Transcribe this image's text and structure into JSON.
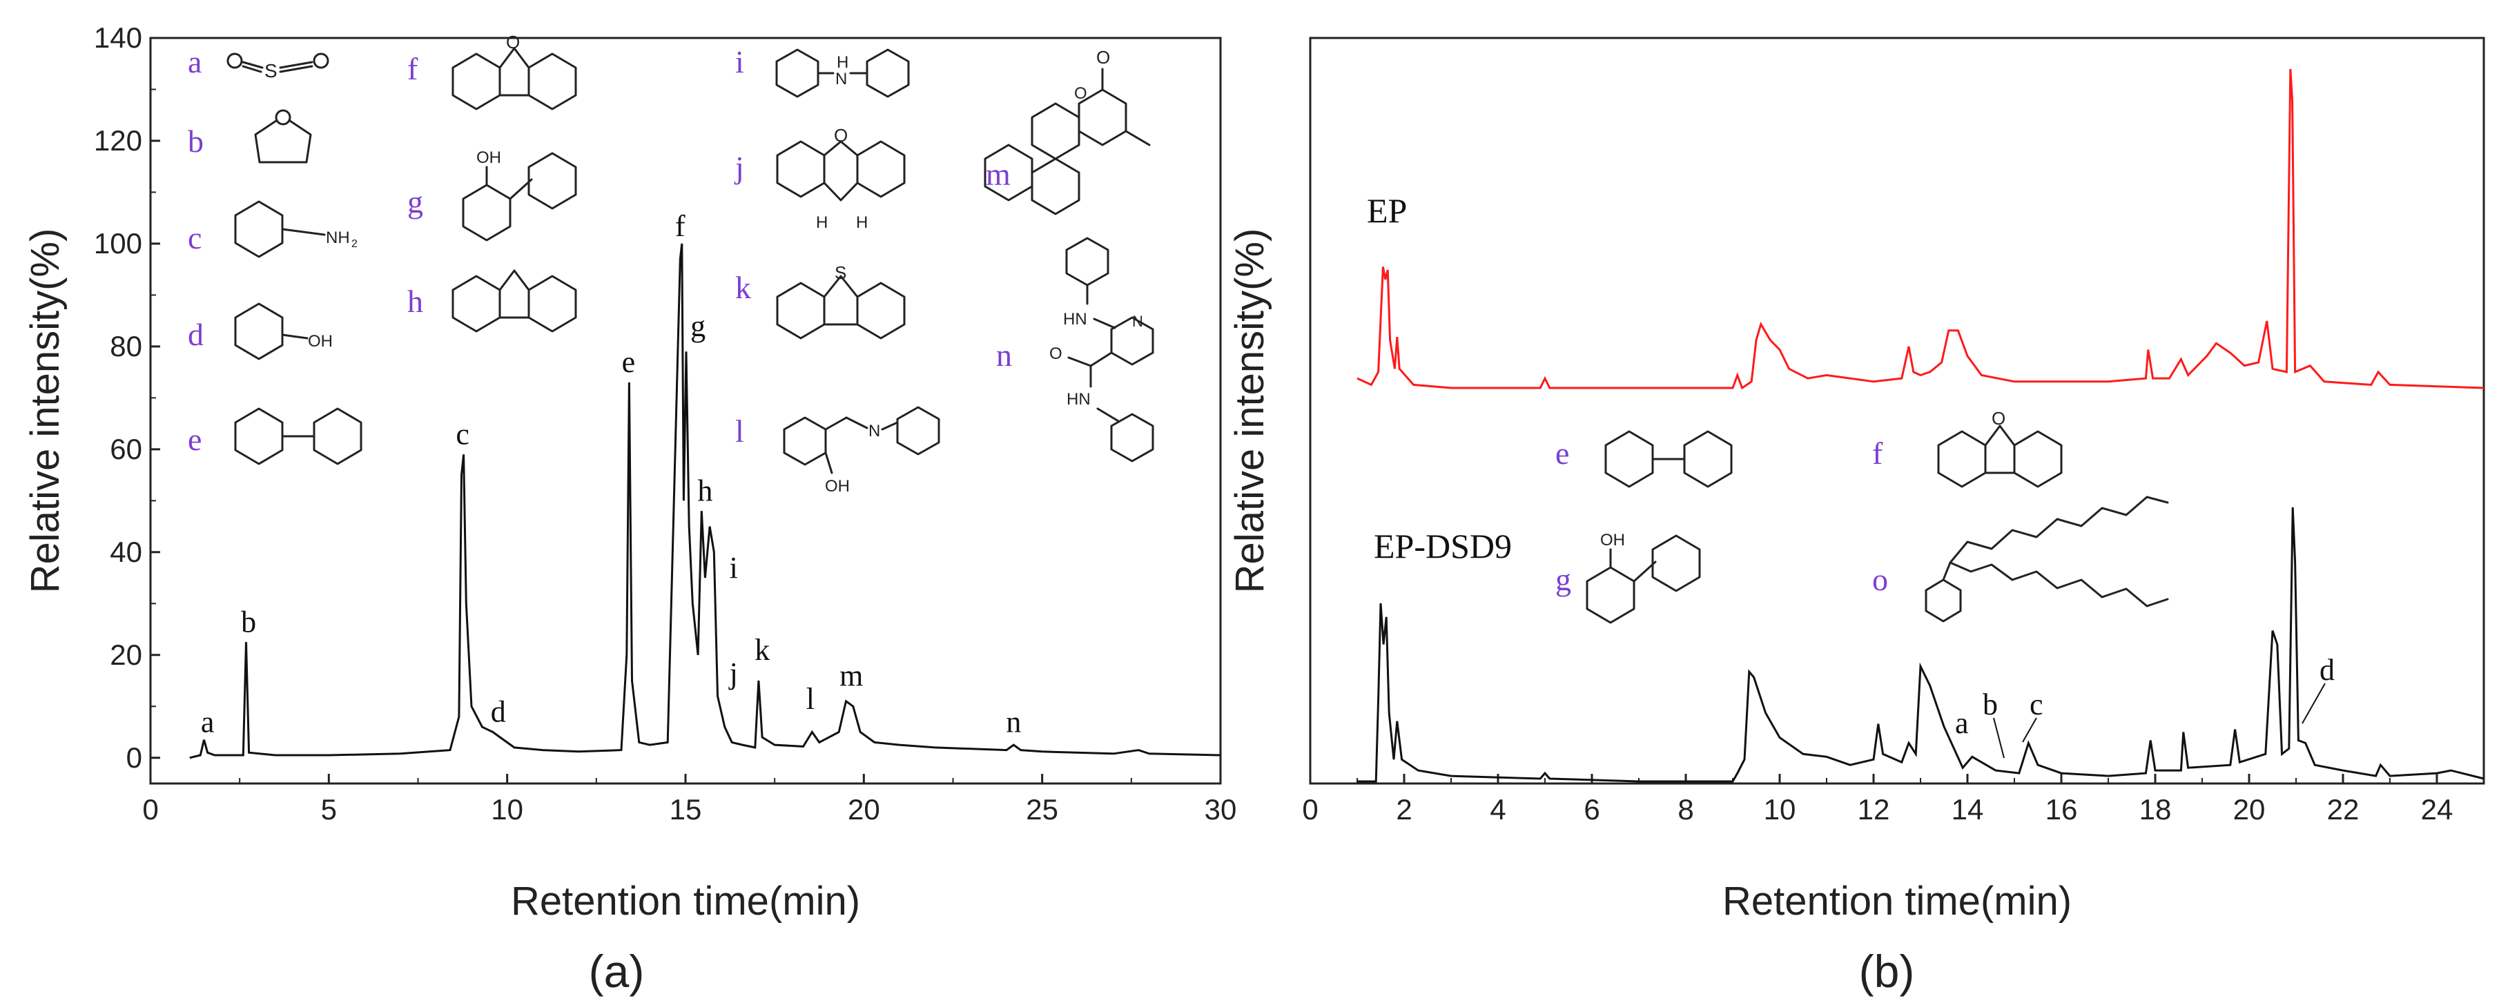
{
  "chart_data": [
    {
      "type": "line",
      "panel_label": "(a)",
      "xlabel": "Retention time(min)",
      "ylabel": "Relative intensity(%)",
      "xlim": [
        0,
        30
      ],
      "ylim": [
        -5,
        140
      ],
      "xticks": [
        "0",
        "5",
        "10",
        "15",
        "20",
        "25",
        "30"
      ],
      "yticks": [
        "0",
        "20",
        "40",
        "60",
        "80",
        "100",
        "120",
        "140"
      ],
      "series": [
        {
          "color": "#111111",
          "points": [
            [
              1.1,
              0
            ],
            [
              1.4,
              0.5
            ],
            [
              1.5,
              3.5
            ],
            [
              1.6,
              1
            ],
            [
              1.8,
              0.5
            ],
            [
              2.6,
              0.5
            ],
            [
              2.68,
              22.5
            ],
            [
              2.76,
              1
            ],
            [
              3.5,
              0.5
            ],
            [
              5,
              0.5
            ],
            [
              7,
              0.8
            ],
            [
              8.4,
              1.5
            ],
            [
              8.65,
              8
            ],
            [
              8.72,
              55
            ],
            [
              8.78,
              59
            ],
            [
              8.85,
              30
            ],
            [
              9.0,
              10
            ],
            [
              9.3,
              6
            ],
            [
              9.6,
              5
            ],
            [
              9.8,
              4
            ],
            [
              10.2,
              2
            ],
            [
              11,
              1.5
            ],
            [
              12,
              1.2
            ],
            [
              13.2,
              1.5
            ],
            [
              13.35,
              20
            ],
            [
              13.42,
              73
            ],
            [
              13.5,
              15
            ],
            [
              13.7,
              3
            ],
            [
              14.0,
              2.5
            ],
            [
              14.5,
              3
            ],
            [
              14.85,
              97
            ],
            [
              14.9,
              100
            ],
            [
              14.95,
              50
            ],
            [
              15.02,
              79
            ],
            [
              15.1,
              45
            ],
            [
              15.2,
              30
            ],
            [
              15.35,
              20
            ],
            [
              15.45,
              48
            ],
            [
              15.55,
              35
            ],
            [
              15.68,
              45
            ],
            [
              15.8,
              40
            ],
            [
              15.9,
              12
            ],
            [
              16.1,
              6
            ],
            [
              16.3,
              3
            ],
            [
              16.6,
              2.5
            ],
            [
              16.95,
              2
            ],
            [
              17.05,
              15
            ],
            [
              17.15,
              4
            ],
            [
              17.5,
              2.5
            ],
            [
              18.3,
              2.2
            ],
            [
              18.55,
              5
            ],
            [
              18.75,
              3
            ],
            [
              19.3,
              5
            ],
            [
              19.5,
              11
            ],
            [
              19.7,
              10
            ],
            [
              19.9,
              5
            ],
            [
              20.3,
              3
            ],
            [
              21,
              2.5
            ],
            [
              22,
              2
            ],
            [
              24,
              1.5
            ],
            [
              24.2,
              2.5
            ],
            [
              24.4,
              1.5
            ],
            [
              25,
              1.2
            ],
            [
              27,
              0.8
            ],
            [
              27.7,
              1.5
            ],
            [
              28,
              0.8
            ],
            [
              30,
              0.5
            ]
          ]
        }
      ],
      "peak_labels": [
        {
          "text": "a",
          "x": 1.6,
          "y": 5
        },
        {
          "text": "b",
          "x": 2.75,
          "y": 24.5
        },
        {
          "text": "c",
          "x": 8.75,
          "y": 61
        },
        {
          "text": "d",
          "x": 9.75,
          "y": 7
        },
        {
          "text": "e",
          "x": 13.4,
          "y": 75
        },
        {
          "text": "f",
          "x": 14.85,
          "y": 101.5
        },
        {
          "text": "g",
          "x": 15.35,
          "y": 82
        },
        {
          "text": "h",
          "x": 15.55,
          "y": 50
        },
        {
          "text": "i",
          "x": 16.35,
          "y": 35
        },
        {
          "text": "j",
          "x": 16.35,
          "y": 14.5
        },
        {
          "text": "k",
          "x": 17.15,
          "y": 19
        },
        {
          "text": "l",
          "x": 18.5,
          "y": 9.5
        },
        {
          "text": "m",
          "x": 19.65,
          "y": 14
        },
        {
          "text": "n",
          "x": 24.2,
          "y": 5
        }
      ],
      "compound_legend": [
        "a",
        "b",
        "c",
        "d",
        "e",
        "f",
        "g",
        "h",
        "i",
        "j",
        "k",
        "l",
        "m",
        "n"
      ]
    },
    {
      "type": "line",
      "panel_label": "(b)",
      "xlabel": "Retention time(min)",
      "ylabel": "Relative intensity(%)",
      "xlim": [
        0,
        25
      ],
      "xticks": [
        "0",
        "2",
        "4",
        "6",
        "8",
        "10",
        "12",
        "14",
        "16",
        "18",
        "20",
        "22",
        "24"
      ],
      "series": [
        {
          "name": "EP",
          "color": "#ff1a1a",
          "points": [
            [
              1.0,
              0.03
            ],
            [
              1.3,
              0.01
            ],
            [
              1.45,
              0.05
            ],
            [
              1.55,
              0.38
            ],
            [
              1.6,
              0.34
            ],
            [
              1.65,
              0.37
            ],
            [
              1.7,
              0.15
            ],
            [
              1.8,
              0.06
            ],
            [
              1.85,
              0.16
            ],
            [
              1.9,
              0.06
            ],
            [
              2.2,
              0.01
            ],
            [
              3,
              0
            ],
            [
              4.9,
              0
            ],
            [
              5.0,
              0.03
            ],
            [
              5.1,
              0
            ],
            [
              7,
              0
            ],
            [
              9.0,
              0
            ],
            [
              9.1,
              0.04
            ],
            [
              9.2,
              0
            ],
            [
              9.4,
              0.02
            ],
            [
              9.5,
              0.15
            ],
            [
              9.6,
              0.2
            ],
            [
              9.8,
              0.15
            ],
            [
              10.0,
              0.12
            ],
            [
              10.2,
              0.06
            ],
            [
              10.6,
              0.03
            ],
            [
              11,
              0.04
            ],
            [
              11.5,
              0.03
            ],
            [
              12,
              0.02
            ],
            [
              12.6,
              0.03
            ],
            [
              12.75,
              0.13
            ],
            [
              12.85,
              0.05
            ],
            [
              13.0,
              0.04
            ],
            [
              13.2,
              0.05
            ],
            [
              13.45,
              0.08
            ],
            [
              13.6,
              0.18
            ],
            [
              13.8,
              0.18
            ],
            [
              14,
              0.1
            ],
            [
              14.3,
              0.04
            ],
            [
              15,
              0.02
            ],
            [
              16,
              0.02
            ],
            [
              17,
              0.02
            ],
            [
              17.8,
              0.03
            ],
            [
              17.85,
              0.12
            ],
            [
              17.95,
              0.03
            ],
            [
              18.3,
              0.03
            ],
            [
              18.55,
              0.09
            ],
            [
              18.7,
              0.04
            ],
            [
              19.1,
              0.1
            ],
            [
              19.3,
              0.14
            ],
            [
              19.6,
              0.11
            ],
            [
              19.9,
              0.07
            ],
            [
              20.2,
              0.08
            ],
            [
              20.38,
              0.21
            ],
            [
              20.5,
              0.06
            ],
            [
              20.8,
              0.05
            ],
            [
              20.88,
              1.0
            ],
            [
              20.92,
              0.9
            ],
            [
              20.98,
              0.05
            ],
            [
              21.3,
              0.07
            ],
            [
              21.6,
              0.02
            ],
            [
              22.6,
              0.01
            ],
            [
              22.75,
              0.05
            ],
            [
              23,
              0.01
            ],
            [
              25,
              0
            ]
          ]
        },
        {
          "name": "EP-DSD9",
          "color": "#111111",
          "points": [
            [
              1.0,
              0
            ],
            [
              1.4,
              0
            ],
            [
              1.45,
              0.3
            ],
            [
              1.5,
              0.65
            ],
            [
              1.56,
              0.5
            ],
            [
              1.62,
              0.6
            ],
            [
              1.68,
              0.25
            ],
            [
              1.78,
              0.08
            ],
            [
              1.85,
              0.22
            ],
            [
              1.95,
              0.08
            ],
            [
              2.3,
              0.04
            ],
            [
              3,
              0.02
            ],
            [
              4.9,
              0.01
            ],
            [
              5.0,
              0.03
            ],
            [
              5.1,
              0.01
            ],
            [
              7,
              0
            ],
            [
              9.0,
              0
            ],
            [
              9.1,
              0.03
            ],
            [
              9.25,
              0.08
            ],
            [
              9.35,
              0.4
            ],
            [
              9.45,
              0.38
            ],
            [
              9.7,
              0.25
            ],
            [
              10,
              0.16
            ],
            [
              10.5,
              0.1
            ],
            [
              11,
              0.09
            ],
            [
              11.5,
              0.06
            ],
            [
              12.0,
              0.08
            ],
            [
              12.1,
              0.21
            ],
            [
              12.2,
              0.1
            ],
            [
              12.6,
              0.07
            ],
            [
              12.75,
              0.14
            ],
            [
              12.9,
              0.1
            ],
            [
              13.0,
              0.42
            ],
            [
              13.2,
              0.35
            ],
            [
              13.5,
              0.2
            ],
            [
              13.9,
              0.05
            ],
            [
              14.1,
              0.09
            ],
            [
              14.6,
              0.04
            ],
            [
              15.1,
              0.03
            ],
            [
              15.3,
              0.14
            ],
            [
              15.5,
              0.06
            ],
            [
              16,
              0.03
            ],
            [
              17,
              0.02
            ],
            [
              17.8,
              0.03
            ],
            [
              17.9,
              0.15
            ],
            [
              18.0,
              0.04
            ],
            [
              18.55,
              0.04
            ],
            [
              18.6,
              0.18
            ],
            [
              18.7,
              0.05
            ],
            [
              19.6,
              0.06
            ],
            [
              19.7,
              0.19
            ],
            [
              19.8,
              0.07
            ],
            [
              20.35,
              0.1
            ],
            [
              20.5,
              0.55
            ],
            [
              20.6,
              0.5
            ],
            [
              20.7,
              0.1
            ],
            [
              20.85,
              0.12
            ],
            [
              20.93,
              1.0
            ],
            [
              20.98,
              0.8
            ],
            [
              21.05,
              0.15
            ],
            [
              21.2,
              0.14
            ],
            [
              21.4,
              0.06
            ],
            [
              22,
              0.04
            ],
            [
              22.7,
              0.02
            ],
            [
              22.8,
              0.06
            ],
            [
              23,
              0.02
            ],
            [
              24,
              0.03
            ],
            [
              24.3,
              0.04
            ],
            [
              25,
              0.01
            ]
          ]
        }
      ],
      "series_labels": [
        "EP",
        "EP-DSD9"
      ],
      "peak_labels": [
        "a",
        "b",
        "c",
        "d"
      ],
      "compound_legend": [
        "e",
        "f",
        "g",
        "o"
      ]
    }
  ]
}
